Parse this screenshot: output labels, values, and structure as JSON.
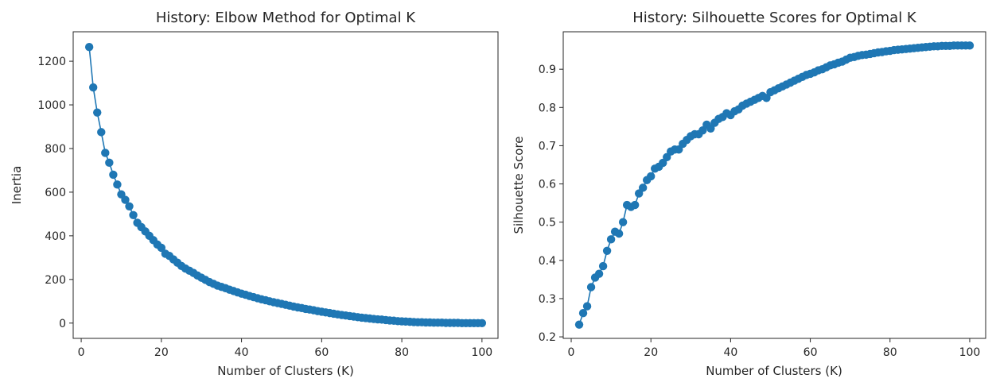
{
  "chart_data": [
    {
      "type": "line",
      "title": "History: Elbow Method for Optimal K",
      "xlabel": "Number of Clusters (K)",
      "ylabel": "Inertia",
      "xlim": [
        -2,
        104
      ],
      "ylim": [
        -70,
        1335
      ],
      "xticks": [
        0,
        20,
        40,
        60,
        80,
        100
      ],
      "yticks": [
        0,
        200,
        400,
        600,
        800,
        1000,
        1200
      ],
      "grid": false,
      "color": "#1f77b4",
      "x": [
        2,
        3,
        4,
        5,
        6,
        7,
        8,
        9,
        10,
        11,
        12,
        13,
        14,
        15,
        16,
        17,
        18,
        19,
        20,
        21,
        22,
        23,
        24,
        25,
        26,
        27,
        28,
        29,
        30,
        31,
        32,
        33,
        34,
        35,
        36,
        37,
        38,
        39,
        40,
        41,
        42,
        43,
        44,
        45,
        46,
        47,
        48,
        49,
        50,
        51,
        52,
        53,
        54,
        55,
        56,
        57,
        58,
        59,
        60,
        61,
        62,
        63,
        64,
        65,
        66,
        67,
        68,
        69,
        70,
        71,
        72,
        73,
        74,
        75,
        76,
        77,
        78,
        79,
        80,
        81,
        82,
        83,
        84,
        85,
        86,
        87,
        88,
        89,
        90,
        91,
        92,
        93,
        94,
        95,
        96,
        97,
        98,
        99,
        100
      ],
      "y": [
        1265,
        1080,
        965,
        875,
        780,
        735,
        680,
        635,
        590,
        565,
        535,
        495,
        460,
        440,
        420,
        400,
        380,
        360,
        345,
        318,
        308,
        292,
        277,
        262,
        250,
        240,
        230,
        218,
        208,
        198,
        188,
        180,
        172,
        166,
        160,
        153,
        147,
        141,
        135,
        130,
        124,
        119,
        114,
        109,
        105,
        100,
        96,
        92,
        88,
        84,
        80,
        76,
        72,
        69,
        65,
        62,
        59,
        55,
        52,
        49,
        46,
        43,
        40,
        37,
        35,
        32,
        30,
        27,
        25,
        23,
        21,
        19,
        17,
        16,
        14,
        12,
        11,
        9,
        8,
        7,
        6,
        5,
        4,
        4,
        3,
        3,
        2,
        2,
        2,
        1,
        1,
        1,
        1,
        0,
        0,
        0,
        0,
        0,
        0
      ]
    },
    {
      "type": "line",
      "title": "History: Silhouette Scores for Optimal K",
      "xlabel": "Number of Clusters (K)",
      "ylabel": "Silhouette Score",
      "xlim": [
        -2,
        104
      ],
      "ylim": [
        0.196,
        0.998
      ],
      "xticks": [
        0,
        20,
        40,
        60,
        80,
        100
      ],
      "yticks": [
        0.2,
        0.3,
        0.4,
        0.5,
        0.6,
        0.7,
        0.8,
        0.9
      ],
      "grid": false,
      "color": "#1f77b4",
      "x": [
        2,
        3,
        4,
        5,
        6,
        7,
        8,
        9,
        10,
        11,
        12,
        13,
        14,
        15,
        16,
        17,
        18,
        19,
        20,
        21,
        22,
        23,
        24,
        25,
        26,
        27,
        28,
        29,
        30,
        31,
        32,
        33,
        34,
        35,
        36,
        37,
        38,
        39,
        40,
        41,
        42,
        43,
        44,
        45,
        46,
        47,
        48,
        49,
        50,
        51,
        52,
        53,
        54,
        55,
        56,
        57,
        58,
        59,
        60,
        61,
        62,
        63,
        64,
        65,
        66,
        67,
        68,
        69,
        70,
        71,
        72,
        73,
        74,
        75,
        76,
        77,
        78,
        79,
        80,
        81,
        82,
        83,
        84,
        85,
        86,
        87,
        88,
        89,
        90,
        91,
        92,
        93,
        94,
        95,
        96,
        97,
        98,
        99,
        100
      ],
      "y": [
        0.232,
        0.262,
        0.28,
        0.33,
        0.355,
        0.365,
        0.385,
        0.425,
        0.455,
        0.475,
        0.47,
        0.5,
        0.545,
        0.54,
        0.545,
        0.575,
        0.59,
        0.61,
        0.62,
        0.64,
        0.645,
        0.655,
        0.67,
        0.685,
        0.69,
        0.69,
        0.705,
        0.715,
        0.725,
        0.73,
        0.73,
        0.74,
        0.755,
        0.745,
        0.76,
        0.77,
        0.775,
        0.785,
        0.78,
        0.79,
        0.795,
        0.805,
        0.81,
        0.815,
        0.82,
        0.825,
        0.83,
        0.825,
        0.84,
        0.845,
        0.85,
        0.855,
        0.86,
        0.865,
        0.87,
        0.875,
        0.88,
        0.885,
        0.888,
        0.892,
        0.897,
        0.9,
        0.905,
        0.91,
        0.913,
        0.917,
        0.92,
        0.925,
        0.93,
        0.932,
        0.935,
        0.937,
        0.938,
        0.94,
        0.942,
        0.944,
        0.945,
        0.947,
        0.948,
        0.95,
        0.951,
        0.952,
        0.953,
        0.954,
        0.955,
        0.956,
        0.957,
        0.958,
        0.959,
        0.96,
        0.96,
        0.961,
        0.961,
        0.961,
        0.962,
        0.962,
        0.962,
        0.962,
        0.962
      ]
    }
  ]
}
